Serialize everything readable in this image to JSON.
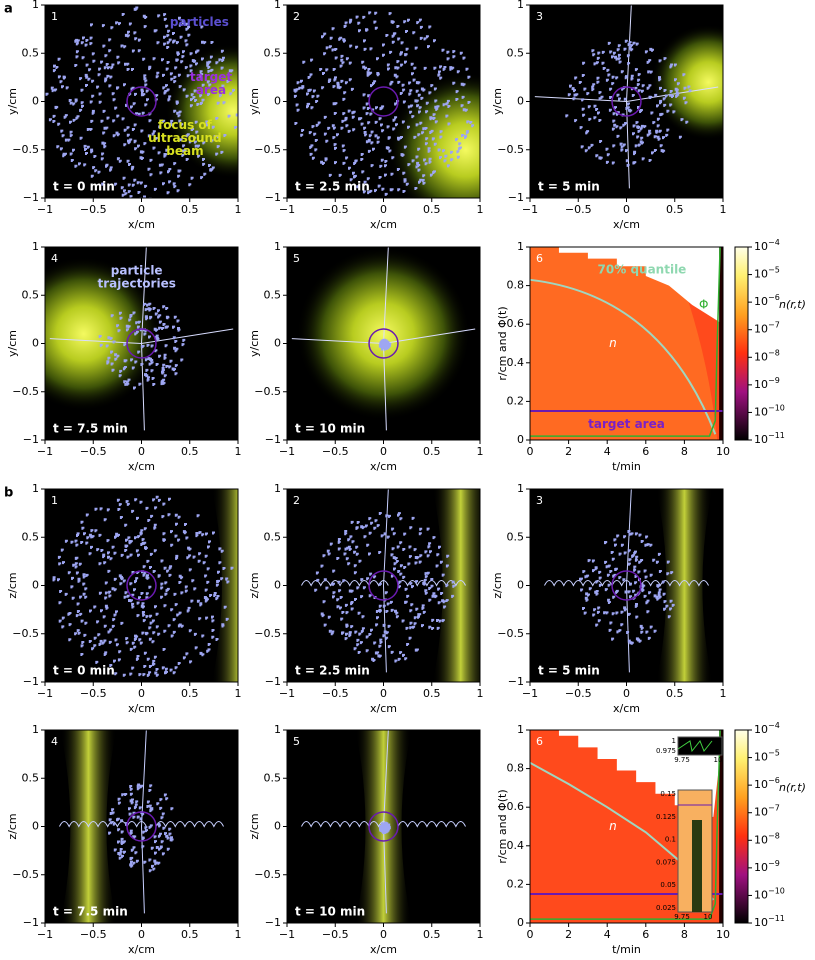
{
  "sections": [
    {
      "label": "a",
      "panels": [
        {
          "number": "1",
          "time": "t = 0 min",
          "xlabel": "x/cm",
          "ylabel": "y/cm",
          "annotations": [
            {
              "lines": [
                "particles"
              ]
            },
            {
              "lines": [
                "target",
                "area"
              ]
            },
            {
              "lines": [
                "focus of",
                "ultrasound",
                "beam"
              ]
            }
          ]
        },
        {
          "number": "2",
          "time": "t = 2.5 min",
          "xlabel": "x/cm",
          "ylabel": "y/cm"
        },
        {
          "number": "3",
          "time": "t = 5 min",
          "xlabel": "x/cm",
          "ylabel": "y/cm"
        },
        {
          "number": "4",
          "time": "t = 7.5 min",
          "xlabel": "x/cm",
          "ylabel": "y/cm",
          "annotations": [
            {
              "lines": [
                "particle",
                "trajectories"
              ]
            }
          ]
        },
        {
          "number": "5",
          "time": "t = 10 min",
          "xlabel": "x/cm",
          "ylabel": "y/cm"
        },
        {
          "number": "6",
          "xlabel": "t/min",
          "ylabel": "r/cm and Φ(t)",
          "colorbar_label": "n(r,t)",
          "annotations": [
            {
              "lines": [
                "70% quantile"
              ]
            },
            {
              "lines": [
                "Φ"
              ]
            },
            {
              "lines": [
                "n"
              ]
            },
            {
              "lines": [
                "target area"
              ]
            }
          ]
        }
      ]
    },
    {
      "label": "b",
      "panels": [
        {
          "number": "1",
          "time": "t = 0 min",
          "xlabel": "x/cm",
          "ylabel": "z/cm"
        },
        {
          "number": "2",
          "time": "t = 2.5 min",
          "xlabel": "x/cm",
          "ylabel": "z/cm"
        },
        {
          "number": "3",
          "time": "t = 5 min",
          "xlabel": "x/cm",
          "ylabel": "z/cm"
        },
        {
          "number": "4",
          "time": "t = 7.5 min",
          "xlabel": "x/cm",
          "ylabel": "z/cm"
        },
        {
          "number": "5",
          "time": "t = 10 min",
          "xlabel": "x/cm",
          "ylabel": "z/cm"
        },
        {
          "number": "6",
          "xlabel": "t/min",
          "ylabel": "r/cm and Φ(t)",
          "colorbar_label": "n(r,t)",
          "annotations": [
            {
              "lines": [
                "Φ"
              ]
            },
            {
              "lines": [
                "n"
              ]
            }
          ],
          "inset_ticks": {
            "upper_y": [
              "1",
              "0.975"
            ],
            "upper_x": [
              "9.75",
              "10"
            ],
            "lower_y": [
              "0.15",
              "0.125",
              "0.1",
              "0.075",
              "0.05",
              "0.025"
            ],
            "lower_x": [
              "9.75",
              "10"
            ]
          }
        }
      ]
    }
  ],
  "ticks": {
    "spatial": [
      "−1",
      "−0.5",
      "0",
      "0.5",
      "1"
    ],
    "time": [
      "0",
      "2",
      "4",
      "6",
      "8",
      "10"
    ],
    "radius": [
      "0",
      "0.2",
      "0.4",
      "0.6",
      "0.8",
      "1"
    ],
    "colorbar": [
      {
        "base": "10",
        "exponent": "−4"
      },
      {
        "base": "10",
        "exponent": "−5"
      },
      {
        "base": "10",
        "exponent": "−6"
      },
      {
        "base": "10",
        "exponent": "−7"
      },
      {
        "base": "10",
        "exponent": "−8"
      },
      {
        "base": "10",
        "exponent": "−9"
      },
      {
        "base": "10",
        "exponent": "−10"
      },
      {
        "base": "10",
        "exponent": "−11"
      }
    ]
  }
}
